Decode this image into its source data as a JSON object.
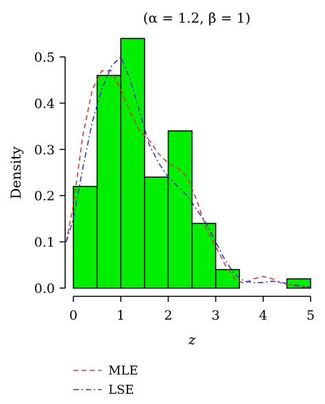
{
  "chart_data": {
    "type": "bar",
    "title": "(α = 1.2, β = 1)",
    "xlabel": "z",
    "ylabel": "Density",
    "xlim": [
      0,
      5
    ],
    "ylim": [
      0,
      0.5
    ],
    "x_ticks": [
      "0",
      "1",
      "2",
      "3",
      "4",
      "5"
    ],
    "y_ticks": [
      "0.0",
      "0.1",
      "0.2",
      "0.3",
      "0.4",
      "0.5"
    ],
    "grid": false,
    "legend_position": "bottom-left",
    "histogram": {
      "color": "#00ee00",
      "bins": [
        {
          "x0": 0.0,
          "x1": 0.5,
          "density": 0.22
        },
        {
          "x0": 0.5,
          "x1": 1.0,
          "density": 0.46
        },
        {
          "x0": 1.0,
          "x1": 1.5,
          "density": 0.54
        },
        {
          "x0": 1.5,
          "x1": 2.0,
          "density": 0.24
        },
        {
          "x0": 2.0,
          "x1": 2.5,
          "density": 0.34
        },
        {
          "x0": 2.5,
          "x1": 3.0,
          "density": 0.14
        },
        {
          "x0": 3.0,
          "x1": 3.5,
          "density": 0.04
        },
        {
          "x0": 3.5,
          "x1": 4.0,
          "density": 0.0
        },
        {
          "x0": 4.0,
          "x1": 4.5,
          "density": 0.0
        },
        {
          "x0": 4.5,
          "x1": 5.0,
          "density": 0.02
        }
      ]
    },
    "series": [
      {
        "name": "MLE",
        "color": "#dd3333",
        "dash": "dashed",
        "x": [
          -0.15,
          0.0,
          0.2,
          0.4,
          0.6,
          0.8,
          1.0,
          1.2,
          1.4,
          1.6,
          1.8,
          2.0,
          2.2,
          2.4,
          2.6,
          2.8,
          3.0,
          3.2,
          3.4,
          3.6,
          3.8,
          4.0,
          4.2,
          4.4,
          4.6,
          4.8,
          5.0
        ],
        "y": [
          0.1,
          0.18,
          0.33,
          0.43,
          0.47,
          0.47,
          0.43,
          0.38,
          0.34,
          0.32,
          0.29,
          0.27,
          0.26,
          0.24,
          0.19,
          0.13,
          0.09,
          0.05,
          0.02,
          0.01,
          0.02,
          0.025,
          0.02,
          0.01,
          0.005,
          0.003,
          0.002
        ]
      },
      {
        "name": "LSE",
        "color": "#3333cc",
        "dash": "dashdot",
        "x": [
          -0.15,
          0.0,
          0.2,
          0.4,
          0.6,
          0.8,
          1.0,
          1.2,
          1.4,
          1.6,
          1.8,
          2.0,
          2.2,
          2.4,
          2.6,
          2.8,
          3.0,
          3.2,
          3.4,
          3.6,
          3.8,
          4.0,
          4.2,
          4.4,
          4.6,
          4.8,
          5.0
        ],
        "y": [
          0.1,
          0.15,
          0.26,
          0.36,
          0.43,
          0.48,
          0.5,
          0.45,
          0.38,
          0.31,
          0.27,
          0.24,
          0.22,
          0.2,
          0.17,
          0.14,
          0.1,
          0.06,
          0.03,
          0.015,
          0.012,
          0.012,
          0.015,
          0.012,
          0.008,
          0.004,
          0.002
        ]
      }
    ]
  }
}
